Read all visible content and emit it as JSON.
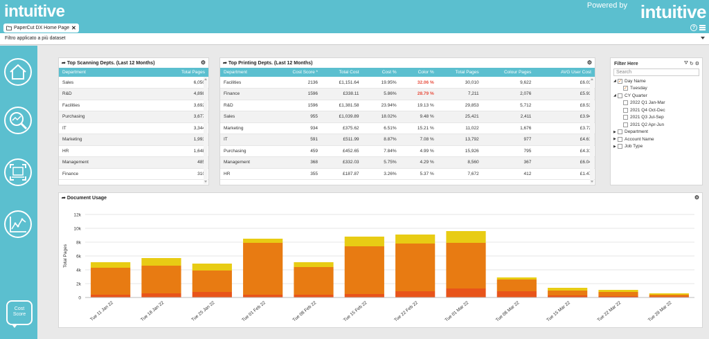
{
  "header": {
    "logo_left": "intuitive",
    "powered_by": "Powered by",
    "logo_right": "intuitive",
    "tab_label": "PaperCut DX Home Page",
    "help_icon": "help-icon",
    "menu_icon": "hamburger-icon"
  },
  "filter_bar": {
    "text": "Filtro applicato a più dataset"
  },
  "sidebar": {
    "items": [
      {
        "icon": "home-icon"
      },
      {
        "icon": "analytics-search-icon"
      },
      {
        "icon": "scanner-icon"
      },
      {
        "icon": "line-chart-icon"
      }
    ],
    "cost_score_label_1": "Cost",
    "cost_score_label_2": "Score"
  },
  "scanning": {
    "title": "Top Scanning Depts. (Last 12 Months)",
    "columns": [
      "Department",
      "Total Pages"
    ],
    "rows": [
      [
        "Sales",
        "6,050"
      ],
      [
        "R&D",
        "4,898"
      ],
      [
        "Facilities",
        "3,692"
      ],
      [
        "Purchasing",
        "3,677"
      ],
      [
        "IT",
        "3,344"
      ],
      [
        "Marketing",
        "1,993"
      ],
      [
        "HR",
        "1,648"
      ],
      [
        "Management",
        "485"
      ],
      [
        "Finance",
        "310"
      ]
    ]
  },
  "printing": {
    "title": "Top Printing Depts. (Last 12 Months)",
    "columns": [
      "Department",
      "Cost Score *",
      "Total Cost",
      "Cost %",
      "Color %",
      "Total Pages",
      "Colour Pages",
      "AVG User Cost"
    ],
    "rows": [
      [
        "Facilities",
        "2136",
        "£1,151.64",
        "19.95%",
        "32.06 %",
        "30,010",
        "9,622",
        "£6.03"
      ],
      [
        "Finance",
        "1596",
        "£338.11",
        "5.86%",
        "28.79 %",
        "7,211",
        "2,076",
        "£5.93"
      ],
      [
        "R&D",
        "1596",
        "£1,381.58",
        "23.94%",
        "19.13 %",
        "29,853",
        "5,712",
        "£8.53"
      ],
      [
        "Sales",
        "955",
        "£1,039.89",
        "18.02%",
        "9.48 %",
        "25,421",
        "2,411",
        "£3.94"
      ],
      [
        "Marketing",
        "934",
        "£375.62",
        "6.51%",
        "15.21 %",
        "11,022",
        "1,676",
        "£3.72"
      ],
      [
        "IT",
        "591",
        "£511.99",
        "8.87%",
        "7.08 %",
        "13,792",
        "977",
        "£4.61"
      ],
      [
        "Purchasing",
        "459",
        "£452.65",
        "7.84%",
        "4.99 %",
        "15,926",
        "795",
        "£4.31"
      ],
      [
        "Management",
        "368",
        "£332.03",
        "5.75%",
        "4.29 %",
        "8,560",
        "367",
        "£6.04"
      ],
      [
        "HR",
        "355",
        "£187.87",
        "3.26%",
        "5.37 %",
        "7,672",
        "412",
        "£1.47"
      ]
    ],
    "highlight_color": "#e74c3c"
  },
  "filter_panel": {
    "title": "Filter Here",
    "search_placeholder": "Search",
    "tree": [
      {
        "label": "Day Name",
        "level": 0,
        "expanded": true,
        "checked": true
      },
      {
        "label": "Tuesday",
        "level": 1,
        "checked": true
      },
      {
        "label": "CY Quarter",
        "level": 0,
        "expanded": true,
        "checked": false
      },
      {
        "label": "2022 Q1 Jan-Mar",
        "level": 1,
        "checked": false
      },
      {
        "label": "2021 Q4 Oct-Dec",
        "level": 1,
        "checked": false
      },
      {
        "label": "2021 Q3 Jul-Sep",
        "level": 1,
        "checked": false
      },
      {
        "label": "2021 Q2 Apr-Jun",
        "level": 1,
        "checked": false
      },
      {
        "label": "Department",
        "level": 0,
        "expanded": false,
        "checked": false
      },
      {
        "label": "Account Name",
        "level": 0,
        "expanded": false,
        "checked": false
      },
      {
        "label": "Job Type",
        "level": 0,
        "expanded": false,
        "checked": false
      }
    ]
  },
  "chart_data": {
    "type": "bar",
    "title": "Document Usage",
    "ylabel": "Total Pages",
    "ylim": [
      0,
      12000
    ],
    "yticks": [
      "0",
      "2k",
      "4k",
      "6k",
      "8k",
      "10k",
      "12k"
    ],
    "categories": [
      "Tue 11 Jan 22",
      "Tue 18 Jan 22",
      "Tue 25 Jan 22",
      "Tue 01 Feb 22",
      "Tue 08 Feb 22",
      "Tue 15 Feb 22",
      "Tue 22 Feb 22",
      "Tue 01 Mar 22",
      "Tue 08 Mar 22",
      "Tue 15 Mar 22",
      "Tue 22 Mar 22",
      "Tue 29 Mar 22"
    ],
    "stacked": true,
    "series": [
      {
        "color": "#e8541a",
        "values": [
          400,
          600,
          800,
          400,
          400,
          500,
          900,
          1300,
          900,
          300,
          200,
          150
        ]
      },
      {
        "color": "#e87b12",
        "values": [
          3900,
          4000,
          3100,
          7500,
          4000,
          6900,
          6900,
          6600,
          1700,
          700,
          600,
          250
        ]
      },
      {
        "color": "#e8cc14",
        "values": [
          800,
          1100,
          1000,
          600,
          700,
          1400,
          1300,
          1700,
          300,
          400,
          300,
          200
        ]
      }
    ],
    "grid": true,
    "legend": "none"
  }
}
